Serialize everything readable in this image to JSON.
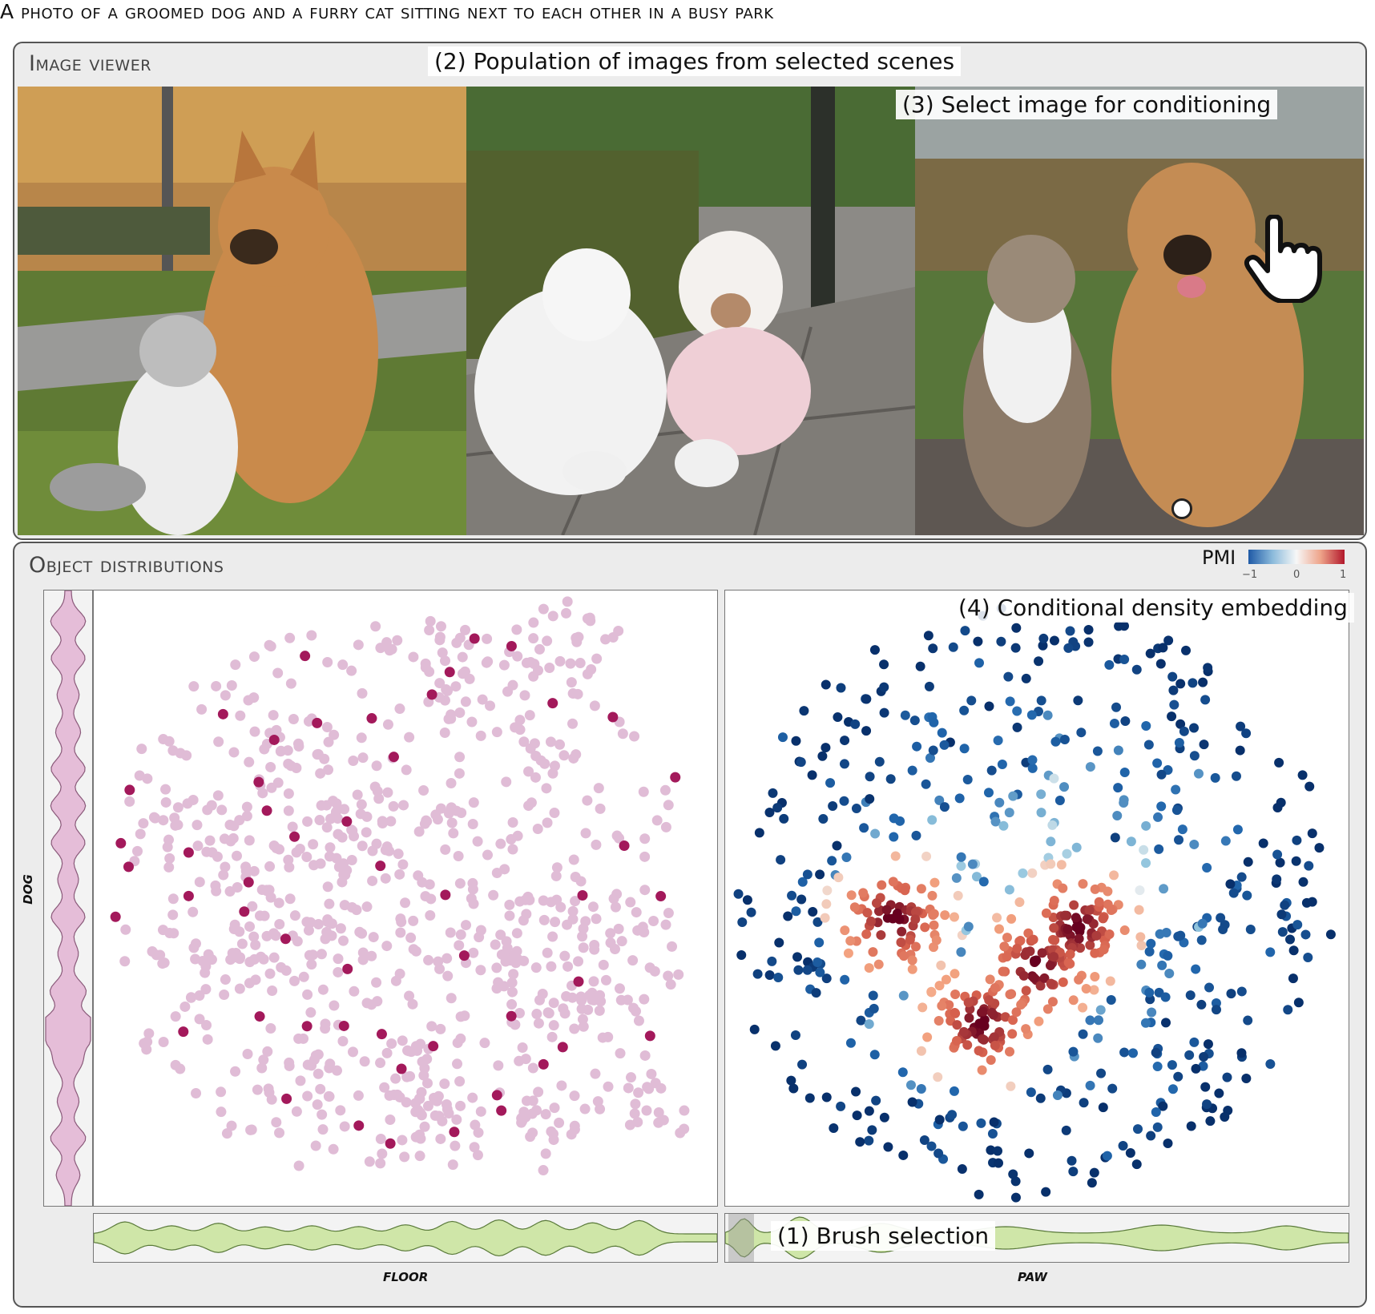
{
  "prompt": "A photo of a groomed dog and a furry cat sitting next to each other in a busy park",
  "image_viewer": {
    "title": "Image viewer",
    "callout_population": "(2) Population of images from selected scenes",
    "callout_select": "(3) Select image for conditioning"
  },
  "object_distributions": {
    "title": "Object distributions",
    "pmi_legend": {
      "label": "PMI",
      "ticks": [
        "−1",
        "0",
        "1"
      ],
      "colors": [
        "#2166ac",
        "#f7f7f7",
        "#b2182b"
      ]
    },
    "callout_embedding": "(4) Conditional density embedding",
    "callout_brush": "(1) Brush selection",
    "y_axis_label": "dog",
    "x_axis_label_left": "floor",
    "x_axis_label_right": "paw"
  },
  "icons": {
    "cursor": "hand-pointer-icon"
  },
  "colors": {
    "pink_point": "#e0bcd6",
    "magenta_point": "#a3195b",
    "violin_pink": "#e5bdd8",
    "violin_green": "#cfe6a8"
  }
}
